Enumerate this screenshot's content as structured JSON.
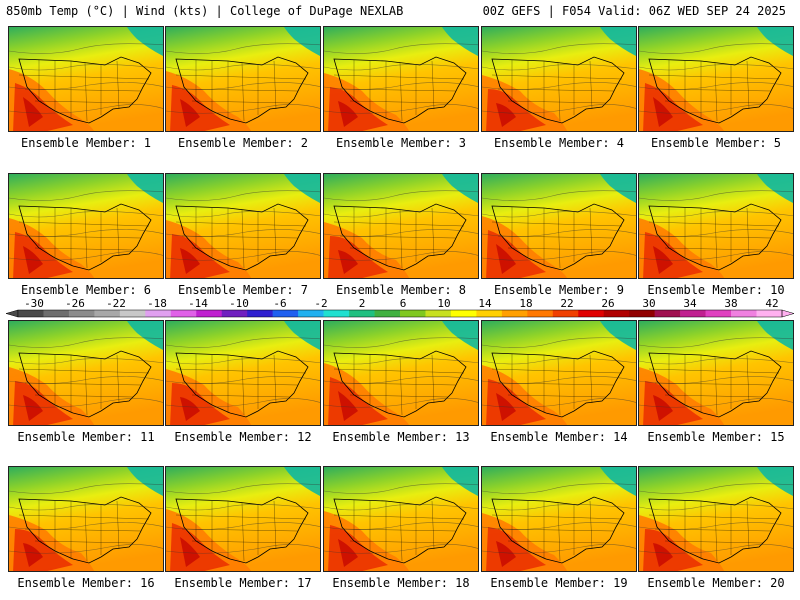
{
  "header": {
    "left": "850mb Temp (°C) | Wind (kts) | College of DuPage NEXLAB",
    "right": "00Z GEFS | F054 Valid: 06Z WED SEP 24 2025"
  },
  "members": [
    "Ensemble Member: 1",
    "Ensemble Member: 2",
    "Ensemble Member: 3",
    "Ensemble Member: 4",
    "Ensemble Member: 5",
    "Ensemble Member: 6",
    "Ensemble Member: 7",
    "Ensemble Member: 8",
    "Ensemble Member: 9",
    "Ensemble Member: 10",
    "Ensemble Member: 11",
    "Ensemble Member: 12",
    "Ensemble Member: 13",
    "Ensemble Member: 14",
    "Ensemble Member: 15",
    "Ensemble Member: 16",
    "Ensemble Member: 17",
    "Ensemble Member: 18",
    "Ensemble Member: 19",
    "Ensemble Member: 20"
  ],
  "colorbar": {
    "labels": [
      "-30",
      "-26",
      "-22",
      "-18",
      "-14",
      "-10",
      "-6",
      "-2",
      "2",
      "6",
      "10",
      "14",
      "18",
      "22",
      "26",
      "30",
      "34",
      "38",
      "42"
    ],
    "colors": [
      "#4a4a4a",
      "#6e6e6e",
      "#8c8c8c",
      "#a8a8a8",
      "#c8c8c8",
      "#e0a0f0",
      "#e060e8",
      "#c020d0",
      "#7020c0",
      "#3020d0",
      "#2060f0",
      "#20b0f0",
      "#20e0d0",
      "#20c080",
      "#40b040",
      "#80c820",
      "#c8e020",
      "#ffff00",
      "#ffd000",
      "#ffa000",
      "#ff7800",
      "#f04000",
      "#e00000",
      "#b00000",
      "#900000",
      "#a01050",
      "#c02090",
      "#e040c0",
      "#f080e0",
      "#ffb0f0"
    ]
  }
}
